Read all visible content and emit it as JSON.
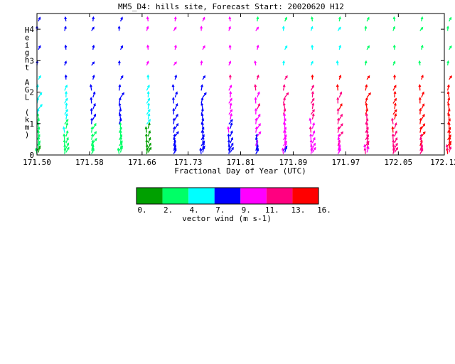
{
  "chart_data": {
    "type": "vector-field",
    "title": "MM5_D4: hills site,  Forecast Start: 20020620 H12",
    "xlabel": "Fractional Day of Year (UTC)",
    "ylabel": "Height AGL (km)",
    "xlim": [
      171.5,
      172.12
    ],
    "ylim": [
      0,
      4.5
    ],
    "x_ticks": [
      "171.50",
      "171.58",
      "171.66",
      "171.73",
      "171.81",
      "171.89",
      "171.97",
      "172.05",
      "172.12"
    ],
    "y_ticks": [
      "0",
      "1",
      "2",
      "3",
      "4"
    ],
    "times": [
      171.5,
      171.542,
      171.583,
      171.625,
      171.667,
      171.708,
      171.75,
      171.792,
      171.833,
      171.875,
      171.917,
      171.958,
      172.0,
      172.042,
      172.083,
      172.125
    ],
    "levels_km": [
      0.03,
      0.08,
      0.14,
      0.21,
      0.29,
      0.38,
      0.48,
      0.59,
      0.71,
      0.84,
      0.98,
      1.13,
      1.29,
      1.46,
      1.64,
      1.83,
      2.05,
      2.4,
      2.85,
      3.35,
      3.95,
      4.25
    ],
    "grid": false,
    "colorbar": {
      "label": "vector wind (m s-1)",
      "tick_labels": [
        "0.",
        "2.",
        "4.",
        "7.",
        "9.",
        "11.",
        "13.",
        "16."
      ],
      "colors": [
        "#00a000",
        "#00ff66",
        "#00ffff",
        "#0000ff",
        "#ff00ff",
        "#ff0080",
        "#ff0000"
      ]
    }
  }
}
